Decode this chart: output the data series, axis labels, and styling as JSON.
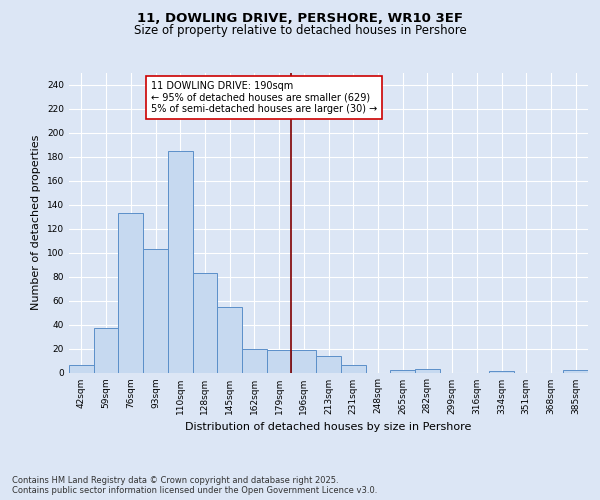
{
  "title_line1": "11, DOWLING DRIVE, PERSHORE, WR10 3EF",
  "title_line2": "Size of property relative to detached houses in Pershore",
  "xlabel": "Distribution of detached houses by size in Pershore",
  "ylabel": "Number of detached properties",
  "categories": [
    "42sqm",
    "59sqm",
    "76sqm",
    "93sqm",
    "110sqm",
    "128sqm",
    "145sqm",
    "162sqm",
    "179sqm",
    "196sqm",
    "213sqm",
    "231sqm",
    "248sqm",
    "265sqm",
    "282sqm",
    "299sqm",
    "316sqm",
    "334sqm",
    "351sqm",
    "368sqm",
    "385sqm"
  ],
  "values": [
    6,
    37,
    133,
    103,
    185,
    83,
    55,
    20,
    19,
    19,
    14,
    6,
    0,
    2,
    3,
    0,
    0,
    1,
    0,
    0,
    2
  ],
  "bar_color": "#c6d9f0",
  "bar_edge_color": "#5b8fc9",
  "vline_x_index": 9,
  "vline_color": "#800000",
  "annotation_text": "11 DOWLING DRIVE: 190sqm\n← 95% of detached houses are smaller (629)\n5% of semi-detached houses are larger (30) →",
  "annotation_box_color": "#ffffff",
  "annotation_box_edge": "#cc0000",
  "background_color": "#dce6f5",
  "ylim": [
    0,
    250
  ],
  "yticks": [
    0,
    20,
    40,
    60,
    80,
    100,
    120,
    140,
    160,
    180,
    200,
    220,
    240
  ],
  "footer": "Contains HM Land Registry data © Crown copyright and database right 2025.\nContains public sector information licensed under the Open Government Licence v3.0.",
  "title_fontsize": 9.5,
  "subtitle_fontsize": 8.5,
  "axis_label_fontsize": 8,
  "tick_fontsize": 6.5,
  "annotation_fontsize": 7,
  "footer_fontsize": 6
}
